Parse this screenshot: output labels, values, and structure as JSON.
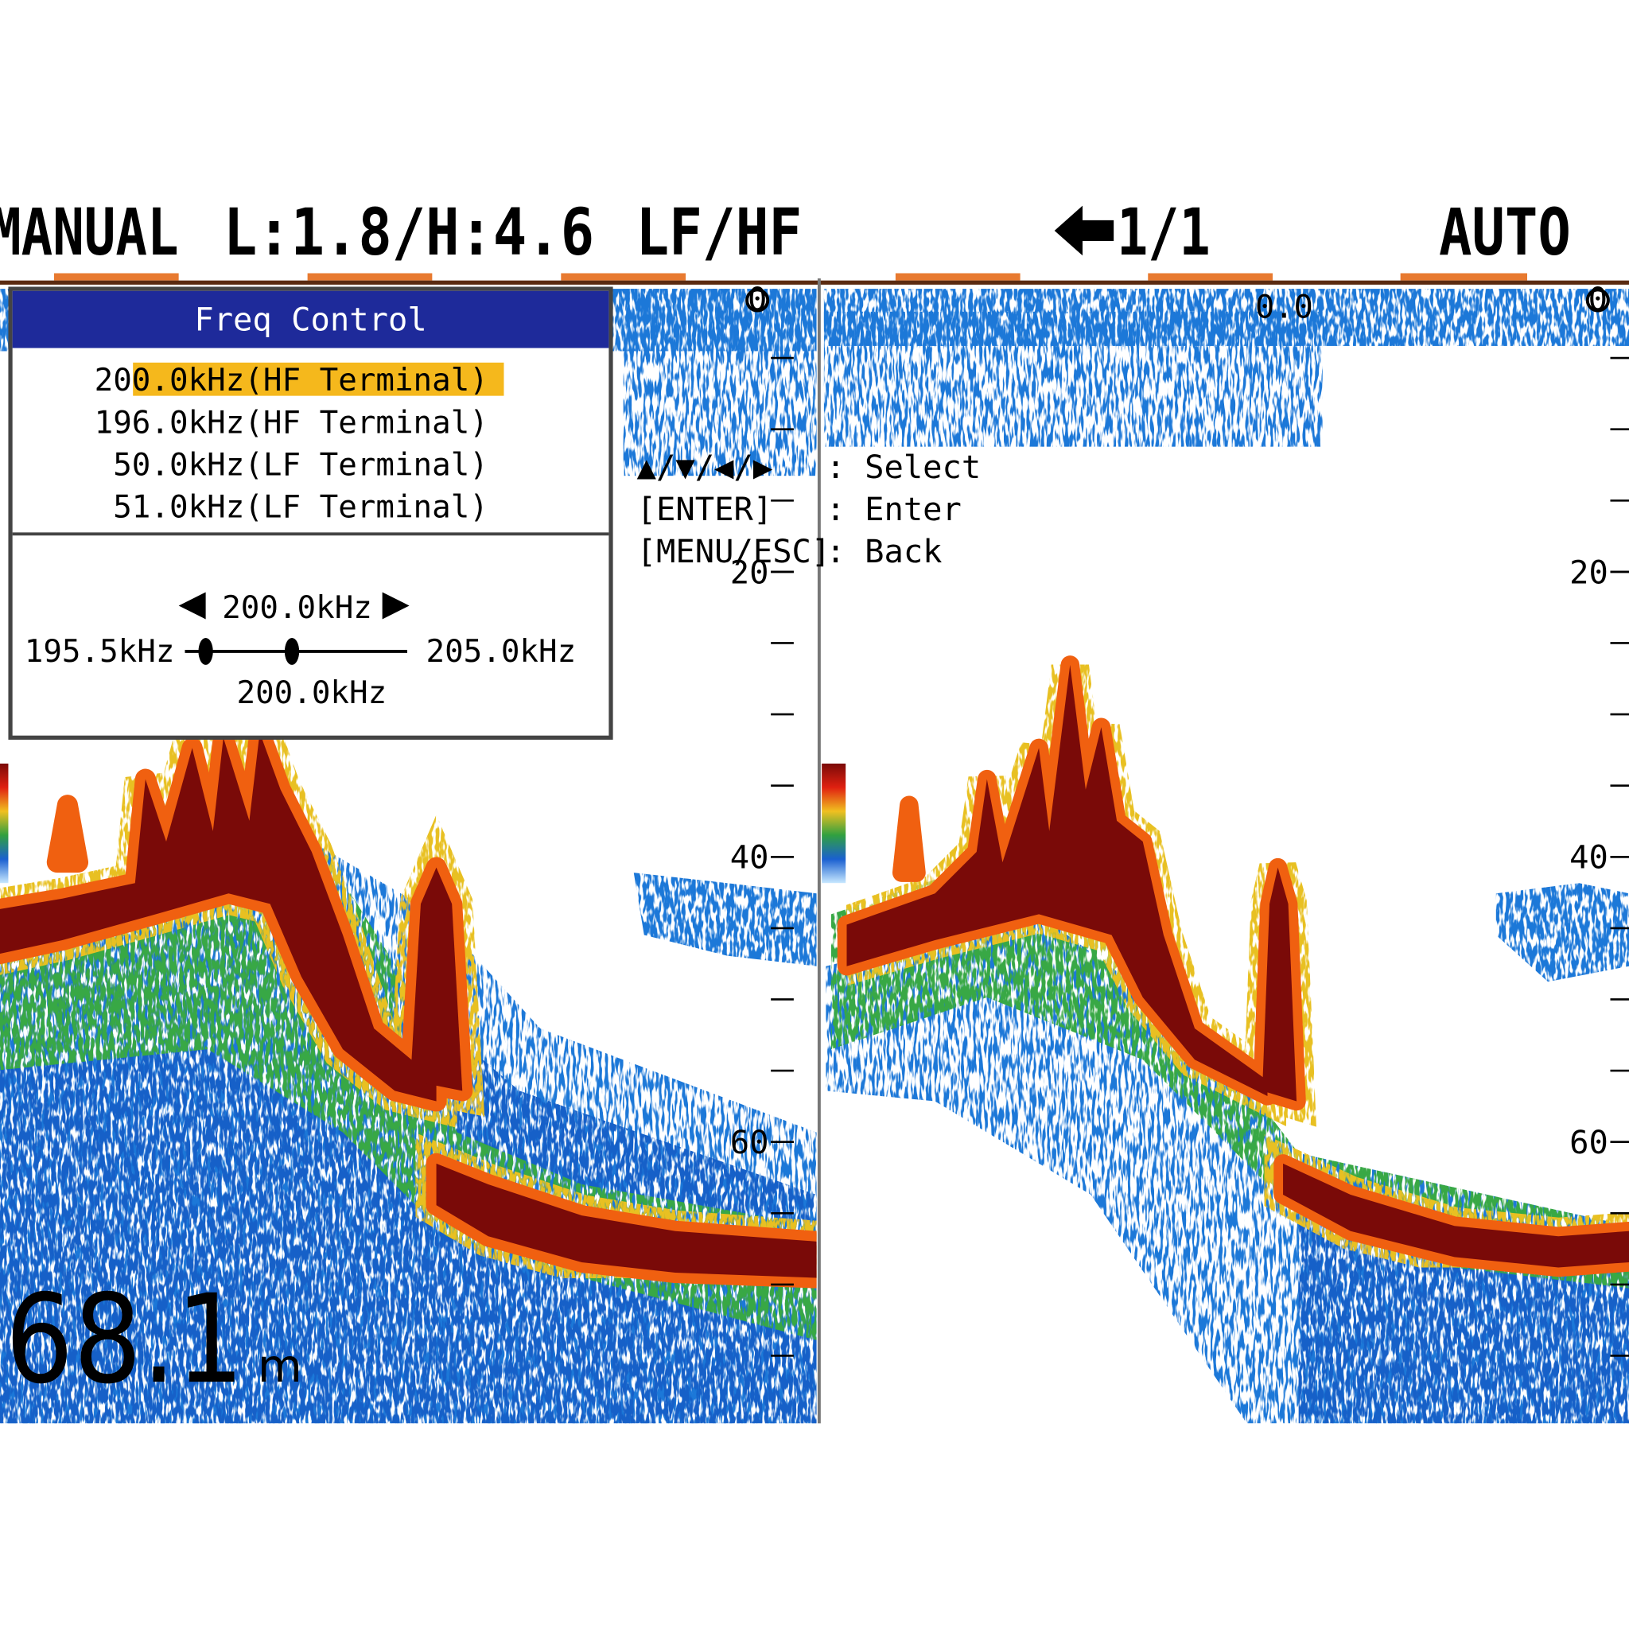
{
  "header": {
    "mode": "MANUAL",
    "gain": "L:1.8/H:4.6",
    "freq_mode": "LF/HF",
    "page": "1/1",
    "range_mode": "AUTO"
  },
  "dialog": {
    "title": "Freq Control",
    "options": [
      "200.0kHz(HF Terminal)",
      "196.0kHz(HF Terminal)",
      "50.0kHz(LF Terminal)",
      "51.0kHz(LF Terminal)"
    ],
    "selected": 0,
    "slider": {
      "value": "200.0kHz",
      "min": "195.5kHz",
      "max": "205.0kHz",
      "current": "200.0kHz"
    }
  },
  "help": [
    {
      "key": "▲/▼/◀/▶",
      "action": ": Select"
    },
    {
      "key": "[ENTER]",
      "action": ": Enter"
    },
    {
      "key": "[MENU/ESC]",
      "action": ": Back"
    }
  ],
  "left_pane": {
    "surface": 0,
    "scale": [
      20,
      40,
      60
    ]
  },
  "right_pane": {
    "surface": 0,
    "offset": "0.0",
    "scale": [
      20,
      40,
      60
    ]
  },
  "depth": {
    "value": 68.1,
    "unit": "m"
  }
}
